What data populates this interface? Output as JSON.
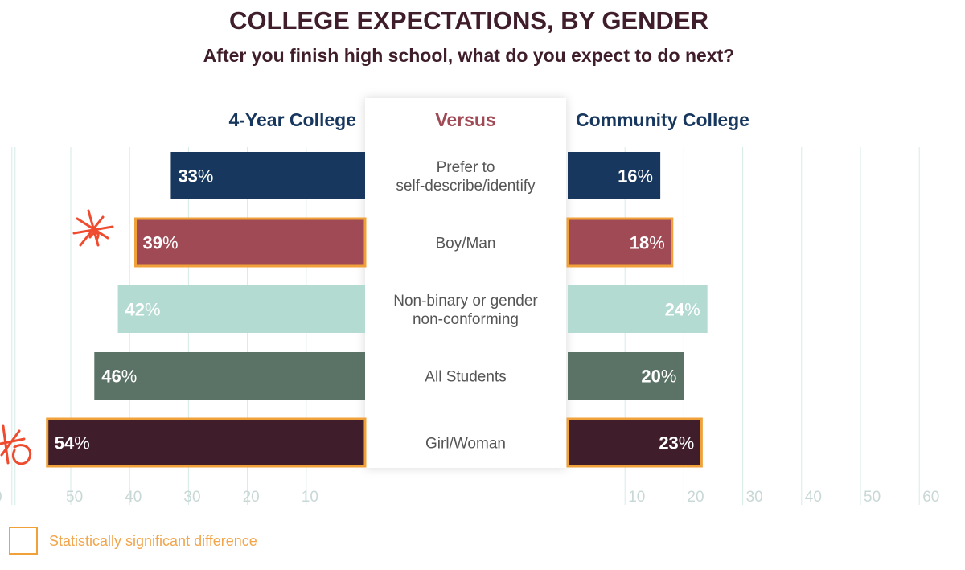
{
  "chart_data": {
    "type": "bar",
    "title": "COLLEGE EXPECTATIONS, BY GENDER",
    "subtitle": "After you finish high school, what do you expect to do next?",
    "left_header": "4-Year College",
    "center_header": "Versus",
    "right_header": "Community College",
    "categories": [
      {
        "lines": [
          "Prefer to",
          "self-describe/identify"
        ]
      },
      {
        "lines": [
          "Boy/Man"
        ]
      },
      {
        "lines": [
          "Non-binary or gender",
          "non-conforming"
        ]
      },
      {
        "lines": [
          "All Students"
        ]
      },
      {
        "lines": [
          "Girl/Woman"
        ]
      }
    ],
    "series": [
      {
        "name": "4-Year College",
        "values": [
          33,
          39,
          42,
          46,
          54
        ]
      },
      {
        "name": "Community College",
        "values": [
          16,
          18,
          24,
          20,
          23
        ]
      }
    ],
    "bar_colors": [
      "#17375e",
      "#a04a55",
      "#b3dbd2",
      "#5b7367",
      "#3f1d2a"
    ],
    "significant": [
      false,
      true,
      false,
      false,
      true
    ],
    "left_ticks": [
      "0",
      "50",
      "40",
      "30",
      "20",
      "10"
    ],
    "right_ticks": [
      "10",
      "20",
      "30",
      "40",
      "50",
      "60"
    ],
    "xlim": [
      0,
      60
    ],
    "legend_label": "Statistically significant difference",
    "colors": {
      "title": "#3f1d2a",
      "header": "#17375e",
      "versus": "#a04a55",
      "highlight": "#f0a13a",
      "legend_text": "#f2a54a",
      "grid": "#d4ebe6",
      "tick": "#c8d8d6",
      "annotation": "#ef4b2e"
    }
  }
}
